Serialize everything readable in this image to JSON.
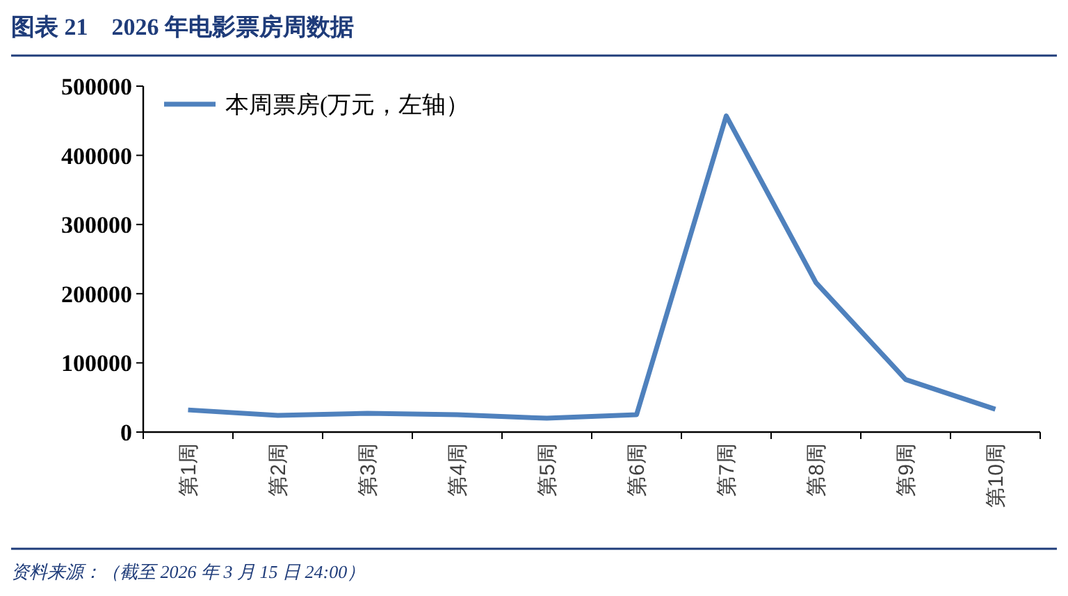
{
  "chart_data": {
    "type": "line",
    "title": "图表 21　2026 年电影票房周数据",
    "annotations": [
      "资料来源：（截至 2026 年 3 月 15 日 24:00）"
    ],
    "categories": [
      "第1周",
      "第2周",
      "第3周",
      "第4周",
      "第5周",
      "第6周",
      "第7周",
      "第8周",
      "第9周",
      "第10周"
    ],
    "series": [
      {
        "name": "本周票房(万元，左轴）",
        "color": "#4f81bd",
        "values": [
          32000,
          24000,
          27000,
          25000,
          20000,
          25000,
          457000,
          216000,
          76000,
          33000
        ]
      }
    ],
    "ylim": [
      0,
      500000
    ],
    "yticks": [
      0,
      100000,
      200000,
      300000,
      400000,
      500000
    ],
    "legend": "top left",
    "grid": false
  }
}
